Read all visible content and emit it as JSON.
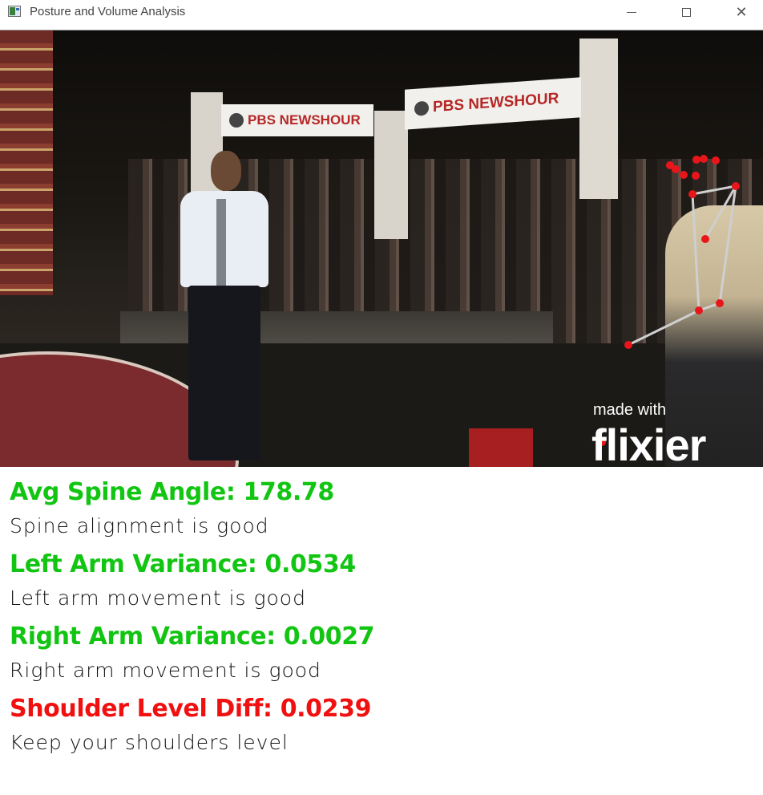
{
  "window": {
    "title": "Posture and Volume Analysis",
    "app_icon": "opencv-window-icon",
    "controls": [
      "minimize-icon",
      "maximize-icon",
      "close-icon"
    ],
    "close_glyph": "✕"
  },
  "video": {
    "banner_text": "PBS NEWSHOUR",
    "watermark_line1": "made with",
    "watermark_line2": "flixier"
  },
  "metrics": {
    "spine": {
      "title": "Avg Spine Angle: 178.78",
      "message": "Spine alignment is good",
      "color": "#12c512"
    },
    "left_arm": {
      "title": "Left Arm Variance: 0.0534",
      "message": "Left arm movement is good",
      "color": "#12c512"
    },
    "right_arm": {
      "title": "Right Arm Variance: 0.0027",
      "message": "Right arm movement is good",
      "color": "#12c512"
    },
    "shoulder": {
      "title": "Shoulder Level Diff: 0.0239",
      "message": "Keep your shoulders level",
      "color": "#f01010"
    }
  },
  "colors": {
    "good": "#12c512",
    "bad": "#f01010",
    "keypoint": "#e8161b",
    "skeleton": "#cfcfcf"
  }
}
